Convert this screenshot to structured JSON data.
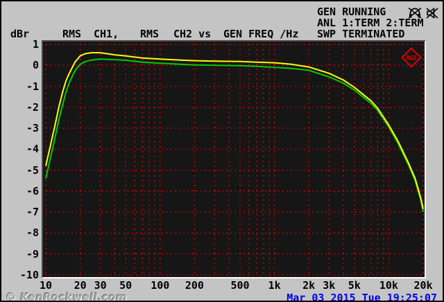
{
  "header": {
    "unit_label": "dBr",
    "trace1_func": "RMS",
    "trace1_name": "CH1,",
    "trace2_func": "RMS",
    "trace2_name": "CH2 vs",
    "x_axis_label": "GEN FREQ /Hz",
    "status_gen": "GEN RUNNING",
    "status_anl": "ANL 1:TERM 2:TERM",
    "status_swp": "SWP TERMINATED"
  },
  "icons": {
    "icon1": "headphones-muted-icon",
    "icon2": "speaker-muted-icon"
  },
  "footer": {
    "watermark": "© KenRockwell.com",
    "datetime": "Mar 03 2015 Tue 19:25:07"
  },
  "colors": {
    "background": "#c4c4c4",
    "plot_background": "#161616",
    "grid": "#dd0000",
    "ch1_trace": "#ffff00",
    "ch2_trace": "#00cc00",
    "datetime_text": "#0000ee",
    "logo": "#e00000",
    "text": "#000000"
  },
  "chart_data": {
    "type": "line",
    "title": "RMS CH1, RMS CH2 vs GEN FREQ /Hz",
    "xlabel": "GEN FREQ /Hz",
    "ylabel": "dBr",
    "x_scale": "log",
    "xlim": [
      10,
      20000
    ],
    "ylim": [
      -10,
      1
    ],
    "grid": {
      "style": "dotted",
      "color": "#dd0000",
      "x_minor_log": true,
      "y_step_db": 1
    },
    "legend_position": "none",
    "x_ticks": [
      {
        "value": 10,
        "label": "10"
      },
      {
        "value": 20,
        "label": "20"
      },
      {
        "value": 30,
        "label": "30"
      },
      {
        "value": 50,
        "label": "50"
      },
      {
        "value": 100,
        "label": "100"
      },
      {
        "value": 200,
        "label": "200"
      },
      {
        "value": 500,
        "label": "500"
      },
      {
        "value": 1000,
        "label": "1k"
      },
      {
        "value": 2000,
        "label": "2k"
      },
      {
        "value": 3000,
        "label": "3k"
      },
      {
        "value": 5000,
        "label": "5k"
      },
      {
        "value": 10000,
        "label": "10k"
      },
      {
        "value": 20000,
        "label": "20k"
      }
    ],
    "y_ticks": [
      {
        "value": 1,
        "label": "1"
      },
      {
        "value": 0,
        "label": "0"
      },
      {
        "value": -1,
        "label": "-1"
      },
      {
        "value": -2,
        "label": "-2"
      },
      {
        "value": -3,
        "label": "-3"
      },
      {
        "value": -4,
        "label": "-4"
      },
      {
        "value": -5,
        "label": "-5"
      },
      {
        "value": -6,
        "label": "-6"
      },
      {
        "value": -7,
        "label": "-7"
      },
      {
        "value": -8,
        "label": "-8"
      },
      {
        "value": -9,
        "label": "-9"
      },
      {
        "value": -10,
        "label": "-10"
      }
    ],
    "series": [
      {
        "name": "CH1 (RMS)",
        "color": "#ffff00",
        "points": [
          [
            10,
            -4.8
          ],
          [
            11,
            -3.8
          ],
          [
            12,
            -2.9
          ],
          [
            13,
            -2.0
          ],
          [
            14,
            -1.3
          ],
          [
            15,
            -0.75
          ],
          [
            16,
            -0.4
          ],
          [
            18,
            0.15
          ],
          [
            20,
            0.45
          ],
          [
            22,
            0.55
          ],
          [
            25,
            0.6
          ],
          [
            30,
            0.6
          ],
          [
            40,
            0.5
          ],
          [
            50,
            0.45
          ],
          [
            70,
            0.35
          ],
          [
            100,
            0.3
          ],
          [
            150,
            0.25
          ],
          [
            200,
            0.22
          ],
          [
            300,
            0.2
          ],
          [
            500,
            0.18
          ],
          [
            700,
            0.15
          ],
          [
            1000,
            0.12
          ],
          [
            1400,
            0.05
          ],
          [
            2000,
            -0.08
          ],
          [
            3000,
            -0.38
          ],
          [
            4000,
            -0.7
          ],
          [
            5000,
            -1.05
          ],
          [
            6000,
            -1.4
          ],
          [
            7000,
            -1.7
          ],
          [
            8000,
            -2.05
          ],
          [
            10000,
            -2.85
          ],
          [
            12000,
            -3.6
          ],
          [
            15000,
            -4.7
          ],
          [
            17000,
            -5.4
          ],
          [
            19000,
            -6.3
          ],
          [
            20000,
            -6.85
          ]
        ]
      },
      {
        "name": "CH2 (RMS)",
        "color": "#00cc00",
        "points": [
          [
            10,
            -5.4
          ],
          [
            11,
            -4.4
          ],
          [
            12,
            -3.5
          ],
          [
            13,
            -2.6
          ],
          [
            14,
            -1.9
          ],
          [
            15,
            -1.3
          ],
          [
            16,
            -0.85
          ],
          [
            18,
            -0.25
          ],
          [
            20,
            0.05
          ],
          [
            22,
            0.17
          ],
          [
            25,
            0.25
          ],
          [
            30,
            0.3
          ],
          [
            40,
            0.27
          ],
          [
            50,
            0.24
          ],
          [
            70,
            0.15
          ],
          [
            100,
            0.1
          ],
          [
            150,
            0.05
          ],
          [
            200,
            0.02
          ],
          [
            300,
            0.0
          ],
          [
            500,
            -0.02
          ],
          [
            700,
            -0.05
          ],
          [
            1000,
            -0.1
          ],
          [
            1400,
            -0.15
          ],
          [
            2000,
            -0.24
          ],
          [
            3000,
            -0.55
          ],
          [
            4000,
            -0.85
          ],
          [
            5000,
            -1.18
          ],
          [
            6000,
            -1.52
          ],
          [
            7000,
            -1.82
          ],
          [
            8000,
            -2.15
          ],
          [
            10000,
            -2.95
          ],
          [
            12000,
            -3.7
          ],
          [
            15000,
            -4.8
          ],
          [
            17000,
            -5.5
          ],
          [
            19000,
            -6.4
          ],
          [
            20000,
            -7.0
          ]
        ]
      }
    ],
    "logo_text": "R&S"
  }
}
